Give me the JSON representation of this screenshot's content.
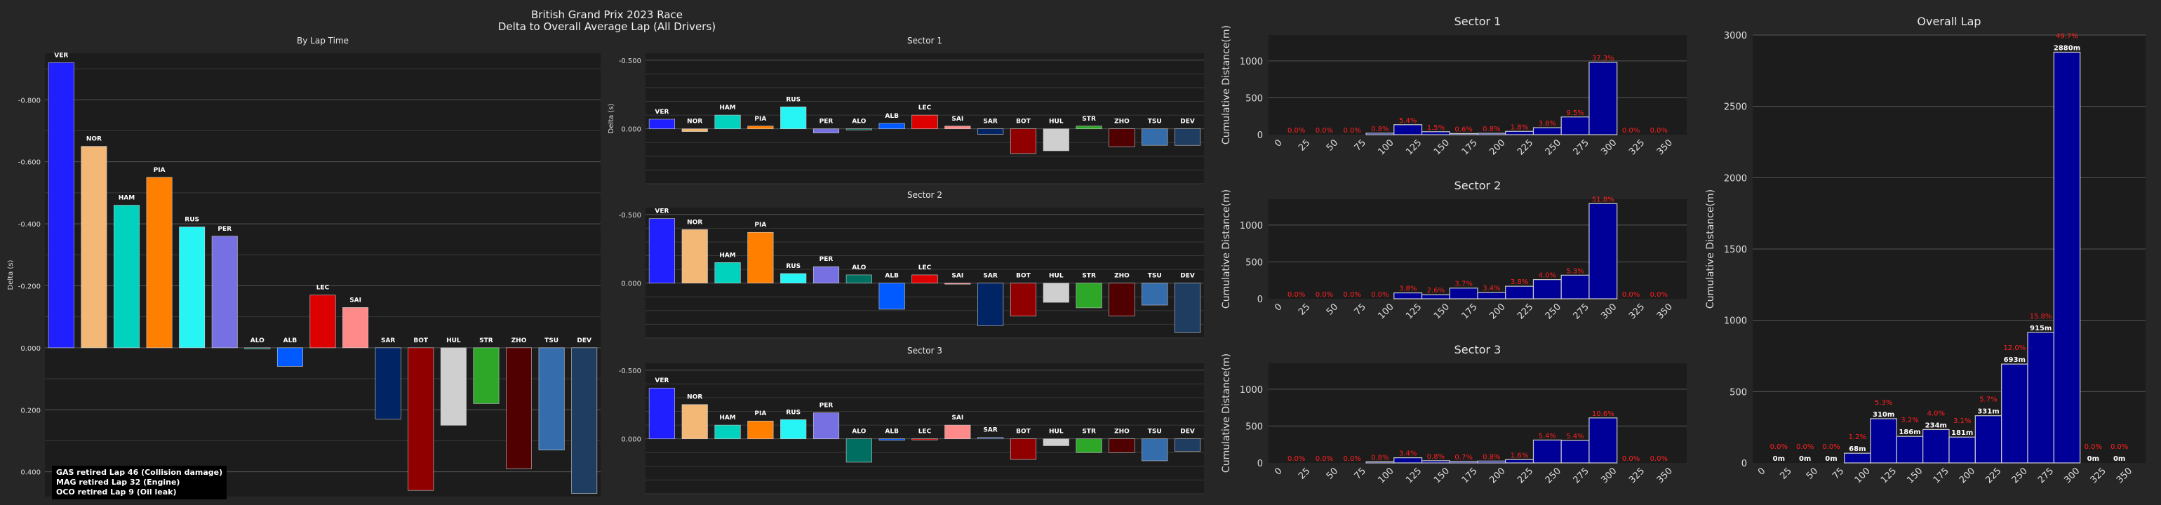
{
  "figure": {
    "title_line1": "British Grand Prix 2023 Race",
    "title_line2": "Delta to Overall Average Lap (All Drivers)",
    "notes": [
      "GAS retired Lap 46 (Collision damage)",
      "MAG retired Lap 32 (Engine)",
      "OCO retired Lap 9 (Oil leak)"
    ]
  },
  "colors": {
    "VER": "#1f1fff",
    "NOR": "#f3b776",
    "HAM": "#00d2be",
    "PIA": "#ff8000",
    "RUS": "#27f4f4",
    "PER": "#7670e3",
    "ALO": "#006f62",
    "ALB": "#005aff",
    "LEC": "#dc0000",
    "SAI": "#ff8a8a",
    "SAR": "#012564",
    "BOT": "#900000",
    "HUL": "#cfcfcf",
    "STR": "#2ea628",
    "ZHO": "#500000",
    "TSU": "#356cac",
    "DEV": "#1e3d61",
    "hist_bar": "#000099",
    "hist_edge": "#cccccc",
    "pct_text": "#ff2020"
  },
  "chart_data": [
    {
      "id": "by_lap_time",
      "type": "bar",
      "title": "By Lap Time",
      "ylabel": "Delta (s)",
      "y_inverted": true,
      "ylim": [
        0.48,
        -0.95
      ],
      "yticks": [
        0.4,
        0.2,
        0.0,
        -0.2,
        -0.4,
        -0.6,
        -0.8
      ],
      "ytick_labels": [
        "0.400",
        "0.200",
        "0.000",
        "-0.200",
        "-0.400",
        "-0.600",
        "-0.800"
      ],
      "categories": [
        "VER",
        "NOR",
        "HAM",
        "PIA",
        "RUS",
        "PER",
        "ALO",
        "ALB",
        "LEC",
        "SAI",
        "SAR",
        "BOT",
        "HUL",
        "STR",
        "ZHO",
        "TSU",
        "DEV"
      ],
      "values": [
        -0.92,
        -0.65,
        -0.46,
        -0.55,
        -0.39,
        -0.36,
        0.0,
        0.06,
        -0.17,
        -0.13,
        0.23,
        0.46,
        0.25,
        0.18,
        0.39,
        0.33,
        0.47
      ]
    },
    {
      "id": "sector1_delta",
      "type": "bar",
      "title": "Sector 1",
      "ylabel": "Delta (s)",
      "y_inverted": true,
      "ylim": [
        0.4,
        -0.55
      ],
      "yticks": [
        0.0,
        -0.5
      ],
      "ytick_labels": [
        "0.000",
        "-0.500"
      ],
      "categories": [
        "VER",
        "NOR",
        "HAM",
        "PIA",
        "RUS",
        "PER",
        "ALO",
        "ALB",
        "LEC",
        "SAI",
        "SAR",
        "BOT",
        "HUL",
        "STR",
        "ZHO",
        "TSU",
        "DEV"
      ],
      "values": [
        -0.07,
        0.02,
        -0.1,
        -0.02,
        -0.16,
        0.03,
        0.0,
        -0.04,
        -0.1,
        -0.02,
        0.04,
        0.18,
        0.16,
        -0.02,
        0.13,
        0.12,
        0.12
      ]
    },
    {
      "id": "sector2_delta",
      "type": "bar",
      "title": "Sector 2",
      "ylabel": "",
      "y_inverted": true,
      "ylim": [
        0.4,
        -0.55
      ],
      "yticks": [
        0.0,
        -0.5
      ],
      "ytick_labels": [
        "0.000",
        "-0.500"
      ],
      "categories": [
        "VER",
        "NOR",
        "HAM",
        "PIA",
        "RUS",
        "PER",
        "ALO",
        "ALB",
        "LEC",
        "SAI",
        "SAR",
        "BOT",
        "HUL",
        "STR",
        "ZHO",
        "TSU",
        "DEV"
      ],
      "values": [
        -0.47,
        -0.39,
        -0.15,
        -0.37,
        -0.07,
        -0.12,
        -0.06,
        0.19,
        -0.06,
        0.0,
        0.31,
        0.24,
        0.14,
        0.18,
        0.24,
        0.16,
        0.36
      ]
    },
    {
      "id": "sector3_delta",
      "type": "bar",
      "title": "Sector 3",
      "ylabel": "",
      "y_inverted": true,
      "ylim": [
        0.4,
        -0.55
      ],
      "yticks": [
        0.0,
        -0.5
      ],
      "ytick_labels": [
        "0.000",
        "-0.500"
      ],
      "categories": [
        "VER",
        "NOR",
        "HAM",
        "PIA",
        "RUS",
        "PER",
        "ALO",
        "ALB",
        "LEC",
        "SAI",
        "SAR",
        "BOT",
        "HUL",
        "STR",
        "ZHO",
        "TSU",
        "DEV"
      ],
      "values": [
        -0.37,
        -0.25,
        -0.1,
        -0.13,
        -0.14,
        -0.19,
        0.17,
        0.01,
        0.0,
        -0.1,
        -0.01,
        0.15,
        0.05,
        0.1,
        0.1,
        0.16,
        0.09
      ]
    },
    {
      "id": "hist_sector1",
      "type": "bar",
      "title": "Sector 1",
      "ylabel": "Cumulative Distance(m)",
      "ylim": [
        0,
        1350
      ],
      "yticks": [
        0,
        500,
        1000
      ],
      "xticks": [
        0,
        25,
        50,
        75,
        100,
        125,
        150,
        175,
        200,
        225,
        250,
        275,
        300,
        325,
        350
      ],
      "bins": [
        0,
        25,
        50,
        75,
        100,
        125,
        150,
        175,
        200,
        225,
        250,
        275,
        300,
        325
      ],
      "values": [
        0,
        0,
        0,
        0,
        0,
        0,
        0,
        0,
        0,
        0,
        0,
        0,
        0,
        0
      ],
      "values_m": [
        0,
        0,
        0,
        20,
        135,
        40,
        15,
        18,
        45,
        95,
        240,
        980,
        0,
        0
      ],
      "pct_labels": [
        "0.0%",
        "0.0%",
        "0.0%",
        "0.8%",
        "5.4%",
        "1.5%",
        "0.6%",
        "0.8%",
        "1.8%",
        "3.8%",
        "9.5%",
        "37.3%",
        "0.0%",
        "0.0%"
      ],
      "show_value_labels": false
    },
    {
      "id": "hist_sector2",
      "type": "bar",
      "title": "Sector 2",
      "ylabel": "Cumulative Distance(m)",
      "ylim": [
        0,
        1350
      ],
      "yticks": [
        0,
        500,
        1000
      ],
      "xticks": [
        0,
        25,
        50,
        75,
        100,
        125,
        150,
        175,
        200,
        225,
        250,
        275,
        300,
        325,
        350
      ],
      "bins": [
        0,
        25,
        50,
        75,
        100,
        125,
        150,
        175,
        200,
        225,
        250,
        275,
        300,
        325
      ],
      "values_m": [
        0,
        0,
        0,
        0,
        80,
        55,
        145,
        85,
        170,
        260,
        320,
        1290,
        0,
        0
      ],
      "pct_labels": [
        "0.0%",
        "0.0%",
        "0.0%",
        "0.0%",
        "3.8%",
        "2.6%",
        "3.7%",
        "3.4%",
        "3.8%",
        "4.0%",
        "5.3%",
        "51.8%",
        "0.0%",
        "0.0%"
      ],
      "show_value_labels": false
    },
    {
      "id": "hist_sector3",
      "type": "bar",
      "title": "Sector 3",
      "ylabel": "Cumulative Distance(m)",
      "ylim": [
        0,
        1350
      ],
      "yticks": [
        0,
        500,
        1000
      ],
      "xticks": [
        0,
        25,
        50,
        75,
        100,
        125,
        150,
        175,
        200,
        225,
        250,
        275,
        300,
        325,
        350
      ],
      "bins": [
        0,
        25,
        50,
        75,
        100,
        125,
        150,
        175,
        200,
        225,
        250,
        275,
        300,
        325
      ],
      "values_m": [
        0,
        0,
        0,
        15,
        70,
        30,
        20,
        25,
        45,
        310,
        305,
        610,
        0,
        0
      ],
      "pct_labels": [
        "0.0%",
        "0.0%",
        "0.0%",
        "0.8%",
        "3.4%",
        "0.8%",
        "0.7%",
        "0.8%",
        "1.6%",
        "5.4%",
        "5.4%",
        "10.6%",
        "0.0%",
        "0.0%"
      ],
      "show_value_labels": false
    },
    {
      "id": "hist_overall",
      "type": "bar",
      "title": "Overall Lap",
      "ylabel": "Cumulative Distance(m)",
      "ylim": [
        0,
        3000
      ],
      "yticks": [
        0,
        500,
        1000,
        1500,
        2000,
        2500,
        3000
      ],
      "xticks": [
        0,
        25,
        50,
        75,
        100,
        125,
        150,
        175,
        200,
        225,
        250,
        275,
        300,
        325,
        350
      ],
      "bins": [
        0,
        25,
        50,
        75,
        100,
        125,
        150,
        175,
        200,
        225,
        250,
        275,
        300,
        325
      ],
      "values_m": [
        0,
        0,
        0,
        68,
        310,
        186,
        234,
        181,
        331,
        693,
        915,
        2880,
        0,
        0
      ],
      "value_labels": [
        "0m",
        "0m",
        "0m",
        "68m",
        "310m",
        "186m",
        "234m",
        "181m",
        "331m",
        "693m",
        "915m",
        "2880m",
        "0m",
        "0m"
      ],
      "pct_labels": [
        "0.0%",
        "0.0%",
        "0.0%",
        "1.2%",
        "5.3%",
        "3.2%",
        "4.0%",
        "3.1%",
        "5.7%",
        "12.0%",
        "15.8%",
        "49.7%",
        "0.0%",
        "0.0%"
      ],
      "show_value_labels": true
    }
  ]
}
